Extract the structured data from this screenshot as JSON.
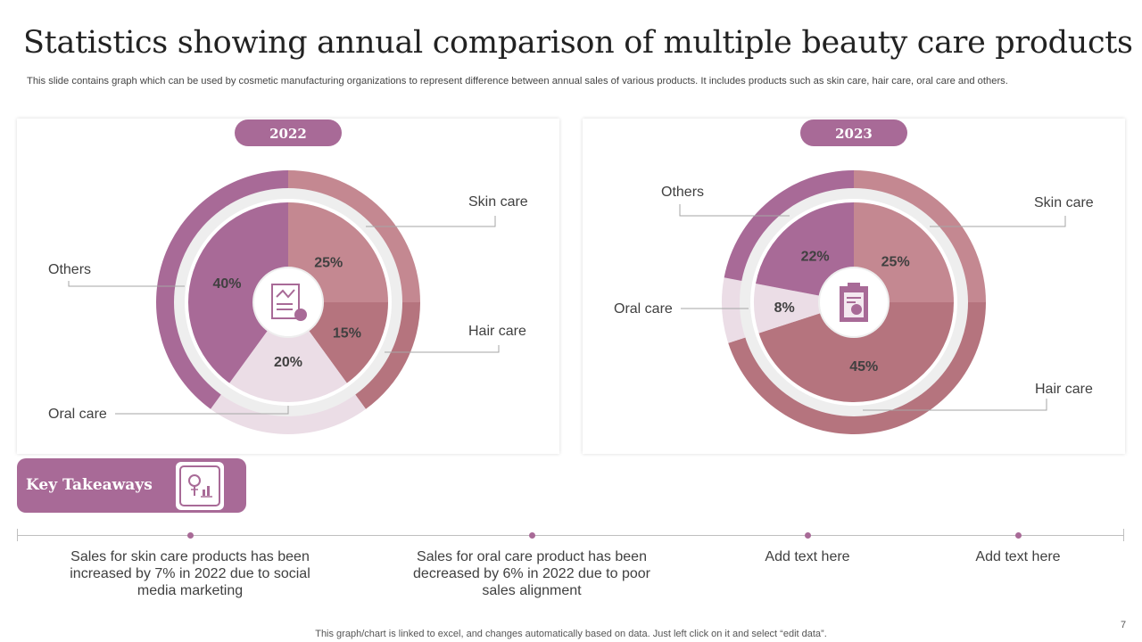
{
  "title": "Statistics showing annual comparison of multiple beauty care products",
  "subtitle": "This slide contains graph which can be used by cosmetic manufacturing organizations to represent difference between annual sales of various products. It includes products such as skin care, hair care, oral care and others.",
  "chart_data": [
    {
      "type": "pie",
      "title": "2022",
      "categories": [
        "Skin care",
        "Hair care",
        "Oral care",
        "Others"
      ],
      "values": [
        25,
        15,
        20,
        40
      ],
      "labels": [
        "25%",
        "15%",
        "20%",
        "40%"
      ],
      "colors": [
        "#c48891",
        "#b5747e",
        "#ebdde6",
        "#a86a97"
      ]
    },
    {
      "type": "pie",
      "title": "2023",
      "categories": [
        "Skin care",
        "Hair care",
        "Oral care",
        "Others"
      ],
      "values": [
        25,
        45,
        8,
        22
      ],
      "labels": [
        "25%",
        "45%",
        "8%",
        "22%"
      ],
      "colors": [
        "#c48891",
        "#b5747e",
        "#ebdde6",
        "#a86a97"
      ]
    }
  ],
  "takeaways": {
    "label": "Key Takeaways",
    "icon": "lightbulb-chart-icon",
    "items": [
      "Sales for skin care products has been increased by 7% in 2022  due to social media marketing",
      "Sales for oral care product has been decreased by 6% in 2022 due to poor sales alignment",
      "Add text here",
      "Add text here"
    ]
  },
  "footer": "This graph/chart is linked to excel,  and changes automatically based on data. Just left click on it and select “edit data”.",
  "page_number": "7",
  "colors": {
    "accent": "#a86a97",
    "track": "#eeeeee"
  }
}
